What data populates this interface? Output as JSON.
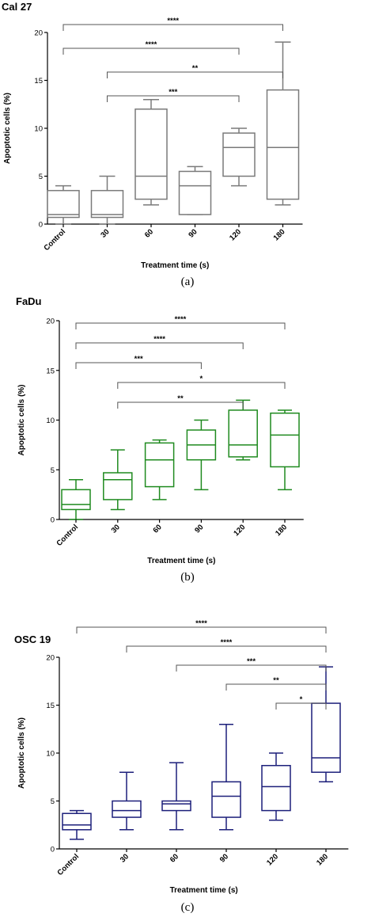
{
  "chart_data": [
    {
      "type": "box",
      "title": "Cal 27",
      "caption": "(a)",
      "xlabel": "Treatment time (s)",
      "ylabel": "Apoptotic cells (%)",
      "ylim": [
        0,
        20
      ],
      "yticks": [
        0,
        5,
        10,
        15,
        20
      ],
      "categories": [
        "Control",
        "30",
        "60",
        "90",
        "120",
        "180"
      ],
      "color": "#7a7a7a",
      "boxes": [
        {
          "min": 0,
          "q1": 0.7,
          "median": 1,
          "q3": 3.5,
          "max": 4
        },
        {
          "min": 0,
          "q1": 0.7,
          "median": 1,
          "q3": 3.5,
          "max": 5
        },
        {
          "min": 2,
          "q1": 2.6,
          "median": 5,
          "q3": 12,
          "max": 13
        },
        {
          "min": 1,
          "q1": 1,
          "median": 4,
          "q3": 5.5,
          "max": 6
        },
        {
          "min": 4,
          "q1": 5,
          "median": 8,
          "q3": 9.5,
          "max": 10
        },
        {
          "min": 2,
          "q1": 2.6,
          "median": 8,
          "q3": 14,
          "max": 19
        }
      ],
      "significance": [
        {
          "from": 0,
          "to": 5,
          "label": "****"
        },
        {
          "from": 0,
          "to": 4,
          "label": "****"
        },
        {
          "from": 1,
          "to": 5,
          "label": "**"
        },
        {
          "from": 1,
          "to": 4,
          "label": "***"
        }
      ]
    },
    {
      "type": "box",
      "title": "FaDu",
      "caption": "(b)",
      "xlabel": "Treatment time (s)",
      "ylabel": "Apoptotic cells (%)",
      "ylim": [
        0,
        20
      ],
      "yticks": [
        0,
        5,
        10,
        15,
        20
      ],
      "categories": [
        "Control",
        "30",
        "60",
        "90",
        "120",
        "180"
      ],
      "color": "#1f8a1f",
      "boxes": [
        {
          "min": 0,
          "q1": 1,
          "median": 1.5,
          "q3": 3,
          "max": 4
        },
        {
          "min": 1,
          "q1": 2,
          "median": 4,
          "q3": 4.7,
          "max": 7
        },
        {
          "min": 2,
          "q1": 3.3,
          "median": 6,
          "q3": 7.7,
          "max": 8
        },
        {
          "min": 3,
          "q1": 6,
          "median": 7.5,
          "q3": 9,
          "max": 10
        },
        {
          "min": 6,
          "q1": 6.3,
          "median": 7.5,
          "q3": 11,
          "max": 12
        },
        {
          "min": 3,
          "q1": 5.3,
          "median": 8.5,
          "q3": 10.7,
          "max": 11
        }
      ],
      "significance": [
        {
          "from": 0,
          "to": 5,
          "label": "****"
        },
        {
          "from": 0,
          "to": 4,
          "label": "****"
        },
        {
          "from": 0,
          "to": 3,
          "label": "***"
        },
        {
          "from": 1,
          "to": 5,
          "label": "*"
        },
        {
          "from": 1,
          "to": 4,
          "label": "**"
        }
      ]
    },
    {
      "type": "box",
      "title": "OSC 19",
      "caption": "(c)",
      "xlabel": "Treatment time (s)",
      "ylabel": "Apoptotic cells (%)",
      "ylim": [
        0,
        20
      ],
      "yticks": [
        0,
        5,
        10,
        15,
        20
      ],
      "categories": [
        "Control",
        "30",
        "60",
        "90",
        "120",
        "180"
      ],
      "color": "#1c1f7a",
      "boxes": [
        {
          "min": 1,
          "q1": 2,
          "median": 2.5,
          "q3": 3.7,
          "max": 4
        },
        {
          "min": 2,
          "q1": 3.3,
          "median": 4,
          "q3": 5,
          "max": 8
        },
        {
          "min": 2,
          "q1": 4,
          "median": 4.7,
          "q3": 5,
          "max": 9
        },
        {
          "min": 2,
          "q1": 3.3,
          "median": 5.5,
          "q3": 7,
          "max": 13
        },
        {
          "min": 3,
          "q1": 4,
          "median": 6.5,
          "q3": 8.7,
          "max": 10
        },
        {
          "min": 7,
          "q1": 8,
          "median": 9.5,
          "q3": 15.2,
          "max": 19
        }
      ],
      "significance": [
        {
          "from": 0,
          "to": 5,
          "label": "****"
        },
        {
          "from": 1,
          "to": 5,
          "label": "****"
        },
        {
          "from": 2,
          "to": 5,
          "label": "***"
        },
        {
          "from": 3,
          "to": 5,
          "label": "**"
        },
        {
          "from": 4,
          "to": 5,
          "label": "*"
        }
      ]
    }
  ]
}
